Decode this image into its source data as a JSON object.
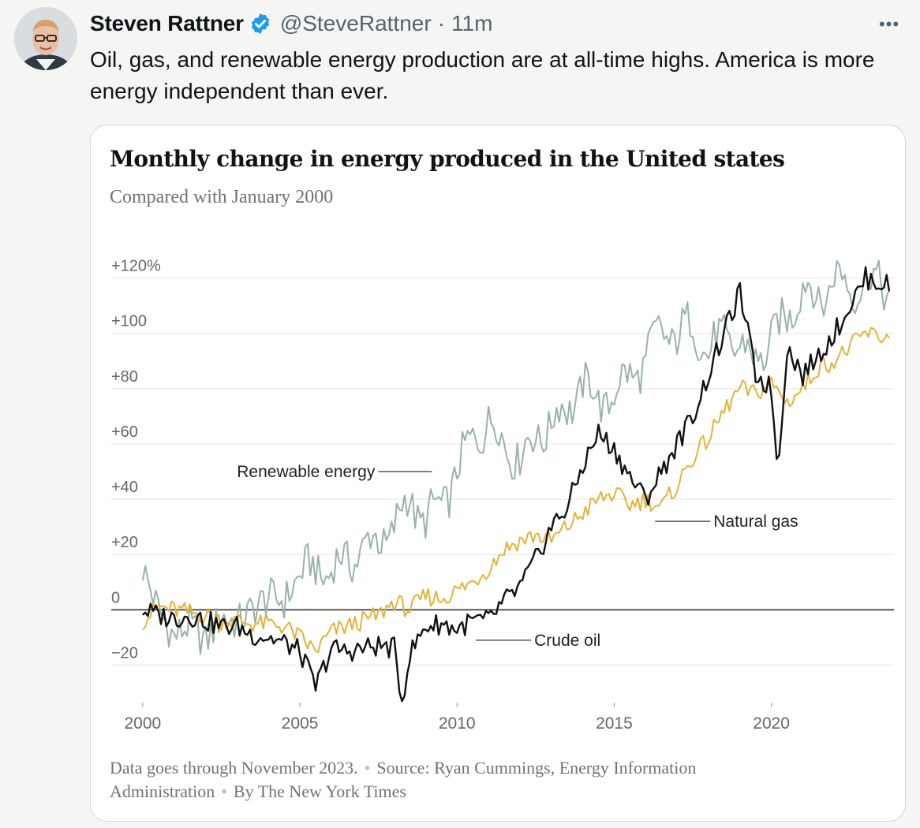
{
  "tweet": {
    "author_name": "Steven Rattner",
    "handle": "@SteveRattner",
    "separator": "·",
    "time": "11m",
    "text": "Oil, gas, and renewable energy production are at all-time highs. America is more energy independent than ever.",
    "more_icon": "more-dots-icon",
    "verified_icon": "verified-badge-icon",
    "colors": {
      "verified": "#1d9bf0",
      "handle": "#536471"
    }
  },
  "chart_data": {
    "type": "line",
    "title": "Monthly change in energy produced in the United states",
    "subtitle": "Compared with January 2000",
    "y_ticks": [
      "+120%",
      "+100",
      "+80",
      "+60",
      "+40",
      "+20",
      "0",
      "−20"
    ],
    "y_tick_values": [
      120,
      100,
      80,
      60,
      40,
      20,
      0,
      -20
    ],
    "x_ticks": [
      "2000",
      "2005",
      "2010",
      "2015",
      "2020"
    ],
    "x_tick_values": [
      2000,
      2005,
      2010,
      2015,
      2020
    ],
    "ylim": [
      -33,
      133
    ],
    "xlim": [
      1999,
      2023.9
    ],
    "grid": true,
    "series": [
      {
        "name": "Renewable energy",
        "color": "#98b3a4",
        "points": [
          [
            2000,
            15
          ],
          [
            2000.5,
            0
          ],
          [
            2001,
            -10
          ],
          [
            2001.5,
            -5
          ],
          [
            2002,
            -12
          ],
          [
            2002.5,
            -2
          ],
          [
            2003,
            -5
          ],
          [
            2003.5,
            0
          ],
          [
            2004,
            5
          ],
          [
            2004.5,
            3
          ],
          [
            2005,
            12
          ],
          [
            2005.5,
            15
          ],
          [
            2006,
            14
          ],
          [
            2006.5,
            18
          ],
          [
            2007,
            22
          ],
          [
            2007.5,
            25
          ],
          [
            2008,
            30
          ],
          [
            2008.5,
            40
          ],
          [
            2009,
            32
          ],
          [
            2009.5,
            38
          ],
          [
            2010,
            50
          ],
          [
            2010.5,
            62
          ],
          [
            2011,
            68
          ],
          [
            2011.5,
            60
          ],
          [
            2012,
            55
          ],
          [
            2012.5,
            62
          ],
          [
            2013,
            68
          ],
          [
            2013.5,
            72
          ],
          [
            2014,
            82
          ],
          [
            2014.5,
            75
          ],
          [
            2015,
            78
          ],
          [
            2015.5,
            85
          ],
          [
            2016,
            90
          ],
          [
            2016.5,
            102
          ],
          [
            2017,
            98
          ],
          [
            2017.5,
            104
          ],
          [
            2018,
            92
          ],
          [
            2018.5,
            100
          ],
          [
            2019,
            95
          ],
          [
            2019.5,
            90
          ],
          [
            2020,
            98
          ],
          [
            2020.5,
            105
          ],
          [
            2021,
            118
          ],
          [
            2021.5,
            110
          ],
          [
            2022,
            122
          ],
          [
            2022.5,
            115
          ],
          [
            2023,
            120
          ],
          [
            2023.8,
            115
          ]
        ],
        "label_x": 2009.2,
        "label_y": 50
      },
      {
        "name": "Natural gas",
        "color": "#e2b33b",
        "points": [
          [
            2000,
            -4
          ],
          [
            2000.5,
            1
          ],
          [
            2001,
            0
          ],
          [
            2001.5,
            -1
          ],
          [
            2002,
            -2
          ],
          [
            2002.5,
            -4
          ],
          [
            2003,
            -4
          ],
          [
            2003.5,
            -5
          ],
          [
            2004,
            -5
          ],
          [
            2004.5,
            -6
          ],
          [
            2005,
            -10
          ],
          [
            2005.5,
            -15
          ],
          [
            2006,
            -8
          ],
          [
            2006.5,
            -6
          ],
          [
            2007,
            -4
          ],
          [
            2007.5,
            -2
          ],
          [
            2008,
            3
          ],
          [
            2008.5,
            0
          ],
          [
            2009,
            5
          ],
          [
            2009.5,
            4
          ],
          [
            2010,
            7
          ],
          [
            2010.5,
            10
          ],
          [
            2011,
            15
          ],
          [
            2011.5,
            22
          ],
          [
            2012,
            25
          ],
          [
            2012.5,
            27
          ],
          [
            2013,
            25
          ],
          [
            2013.5,
            30
          ],
          [
            2014,
            35
          ],
          [
            2014.5,
            40
          ],
          [
            2015,
            42
          ],
          [
            2015.5,
            38
          ],
          [
            2016,
            40
          ],
          [
            2016.5,
            37
          ],
          [
            2017,
            45
          ],
          [
            2017.5,
            55
          ],
          [
            2018,
            62
          ],
          [
            2018.5,
            72
          ],
          [
            2019,
            80
          ],
          [
            2019.5,
            78
          ],
          [
            2020,
            82
          ],
          [
            2020.5,
            75
          ],
          [
            2021,
            80
          ],
          [
            2021.5,
            88
          ],
          [
            2022,
            90
          ],
          [
            2022.5,
            95
          ],
          [
            2023,
            100
          ],
          [
            2023.8,
            98
          ]
        ],
        "label_x": 2016.3,
        "label_y": 32
      },
      {
        "name": "Crude oil",
        "color": "#111111",
        "points": [
          [
            2000,
            0
          ],
          [
            2000.5,
            -2
          ],
          [
            2001,
            -3
          ],
          [
            2001.5,
            -2
          ],
          [
            2002,
            -4
          ],
          [
            2002.5,
            -6
          ],
          [
            2003,
            -6
          ],
          [
            2003.5,
            -9
          ],
          [
            2004,
            -10
          ],
          [
            2004.5,
            -12
          ],
          [
            2005,
            -15
          ],
          [
            2005.5,
            -28
          ],
          [
            2006,
            -14
          ],
          [
            2006.5,
            -15
          ],
          [
            2007,
            -14
          ],
          [
            2007.5,
            -13
          ],
          [
            2008,
            -14
          ],
          [
            2008.25,
            -33
          ],
          [
            2008.5,
            -16
          ],
          [
            2009,
            -6
          ],
          [
            2009.5,
            -5
          ],
          [
            2010,
            -7
          ],
          [
            2010.5,
            -4
          ],
          [
            2011,
            -4
          ],
          [
            2011.5,
            3
          ],
          [
            2012,
            8
          ],
          [
            2012.5,
            18
          ],
          [
            2013,
            30
          ],
          [
            2013.5,
            37
          ],
          [
            2014,
            52
          ],
          [
            2014.5,
            64
          ],
          [
            2015,
            58
          ],
          [
            2015.5,
            48
          ],
          [
            2016,
            40
          ],
          [
            2016.5,
            50
          ],
          [
            2017,
            60
          ],
          [
            2017.5,
            70
          ],
          [
            2018,
            85
          ],
          [
            2018.5,
            100
          ],
          [
            2019,
            115
          ],
          [
            2019.5,
            85
          ],
          [
            2020,
            80
          ],
          [
            2020.2,
            50
          ],
          [
            2020.5,
            95
          ],
          [
            2021,
            85
          ],
          [
            2021.5,
            92
          ],
          [
            2022,
            100
          ],
          [
            2022.5,
            110
          ],
          [
            2023,
            120
          ],
          [
            2023.8,
            117
          ]
        ],
        "label_x": 2010.6,
        "label_y": -11
      }
    ],
    "annotations": [
      "Renewable energy",
      "Natural gas",
      "Crude oil"
    ]
  },
  "footer": {
    "note": "Data goes through November 2023.",
    "source": "Source: Ryan Cummings, Energy Information Administration",
    "credit": "By The New York Times",
    "separator": "•"
  }
}
